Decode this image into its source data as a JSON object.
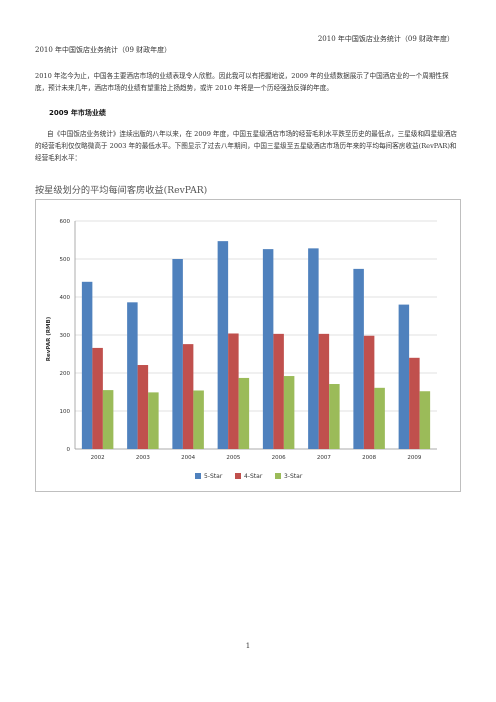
{
  "header": {
    "running_title": "2010 年中国饭店业务统计（09 财政年度）",
    "doc_title": "2010 年中国饭店业务统计（09 财政年度）"
  },
  "intro": "2010 年迄今为止，中国各主要酒店市场的业绩表现令人欣慰。因此我可以有把握地说，2009 年的业绩数据展示了中国酒店业的一个周期性探底，预计未来几年，酒店市场的业绩有望重拾上扬趋势，或许 2010 年将是一个历经强劲反弹的年度。",
  "section_title": "2009 年市场业绩",
  "body": "自《中国饭店业务统计》连续出版的八年以来，在 2009 年度，中国五星级酒店市场的经营毛利水平跌至历史的最低点，三星级和四星级酒店的经营毛利仅仅略微高于 2003 年的最低水平。下图显示了过去八年期间，中国三星级至五星级酒店市场历年来的平均每间客房收益(RevPAR)和经营毛利水平：",
  "chart_caption": "按星级划分的平均每间客房收益(RevPAR)",
  "page_number": "1",
  "chart_data": {
    "type": "bar",
    "categories": [
      "2002",
      "2003",
      "2004",
      "2005",
      "2006",
      "2007",
      "2008",
      "2009"
    ],
    "series": [
      {
        "name": "5-Star",
        "color": "#4F81BD",
        "values": [
          440,
          386,
          500,
          547,
          526,
          528,
          474,
          380
        ]
      },
      {
        "name": "4-Star",
        "color": "#C0504D",
        "values": [
          266,
          221,
          276,
          304,
          303,
          303,
          298,
          240
        ]
      },
      {
        "name": "3-Star",
        "color": "#9BBB59",
        "values": [
          155,
          149,
          154,
          187,
          192,
          171,
          161,
          152
        ]
      }
    ],
    "ylabel": "RevPAR (RMB)",
    "yticks": [
      "0",
      "100",
      "200",
      "300",
      "400",
      "500",
      "600"
    ],
    "ylim": [
      0,
      600
    ],
    "grid": true,
    "legend": "bottom"
  }
}
